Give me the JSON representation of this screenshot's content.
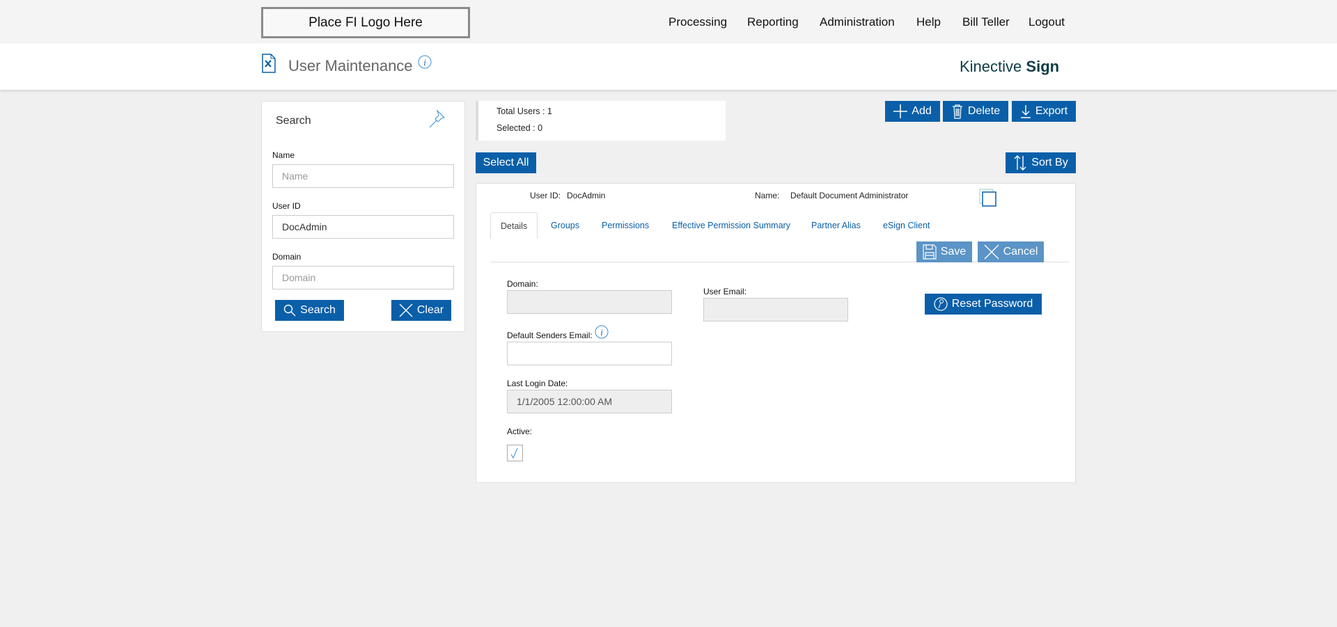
{
  "topbar": {
    "logo": "Place FI Logo Here",
    "nav": [
      "Processing",
      "Reporting",
      "Administration",
      "Help",
      "Bill Teller",
      "Logout"
    ]
  },
  "header": {
    "title": "User Maintenance",
    "brand_light": "Kinective",
    "brand_bold": "Sign"
  },
  "search": {
    "title": "Search",
    "name_label": "Name",
    "name_placeholder": "Name",
    "userid_label": "User ID",
    "userid_value": "DocAdmin",
    "domain_label": "Domain",
    "domain_placeholder": "Domain",
    "search_btn": "Search",
    "clear_btn": "Clear"
  },
  "stats": {
    "total": "Total Users : 1",
    "selected": "Selected : 0"
  },
  "toolbar": {
    "add": "Add",
    "delete": "Delete",
    "export": "Export",
    "select_all": "Select All",
    "sort_by": "Sort By"
  },
  "user": {
    "userid_label": "User ID:",
    "userid": "DocAdmin",
    "name_label": "Name:",
    "name": "Default Document Administrator"
  },
  "tabs": [
    "Details",
    "Groups",
    "Permissions",
    "Effective Permission Summary",
    "Partner Alias",
    "eSign Client"
  ],
  "details": {
    "save": "Save",
    "cancel": "Cancel",
    "domain_label": "Domain:",
    "domain": "",
    "user_email_label": "User Email:",
    "user_email": "",
    "reset_password": "Reset Password",
    "senders_email_label": "Default Senders Email:",
    "senders_email": "",
    "last_login_label": "Last Login Date:",
    "last_login": "1/1/2005 12:00:00 AM",
    "active_label": "Active:",
    "active": true
  },
  "colors": {
    "primary": "#0a5fa8",
    "brand": "#0e3c44"
  }
}
